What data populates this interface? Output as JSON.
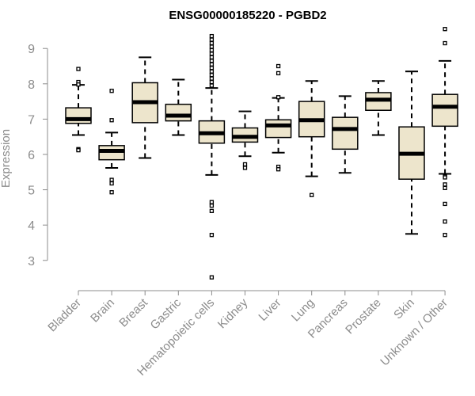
{
  "chart_data": {
    "type": "boxplot",
    "title": "ENSG00000185220 - PGBD2",
    "xlabel": "",
    "ylabel": "Expression",
    "ylim": [
      2.3,
      9.7
    ],
    "yticks": [
      3,
      4,
      5,
      6,
      7,
      8,
      9
    ],
    "box_fill": "#ede5cc",
    "box_stroke": "#000000",
    "axis_color": "#8c8c8c",
    "categories": [
      "Bladder",
      "Brain",
      "Breast",
      "Gastric",
      "Hematopoietic cells",
      "Kidney",
      "Liver",
      "Lung",
      "Pancreas",
      "Prostate",
      "Skin",
      "Unknown / Other"
    ],
    "series": [
      {
        "name": "Bladder",
        "min": 6.55,
        "q1": 6.88,
        "median": 7.0,
        "q3": 7.32,
        "max": 7.97,
        "outliers": [
          8.42,
          8.05,
          7.98,
          6.15,
          6.12
        ]
      },
      {
        "name": "Brain",
        "min": 5.62,
        "q1": 5.85,
        "median": 6.1,
        "q3": 6.25,
        "max": 6.62,
        "outliers": [
          7.8,
          6.97,
          5.28,
          5.18,
          4.93
        ]
      },
      {
        "name": "Breast",
        "min": 5.9,
        "q1": 6.9,
        "median": 7.48,
        "q3": 8.03,
        "max": 8.75,
        "outliers": []
      },
      {
        "name": "Gastric",
        "min": 6.55,
        "q1": 6.95,
        "median": 7.1,
        "q3": 7.42,
        "max": 8.12,
        "outliers": []
      },
      {
        "name": "Hematopoietic cells",
        "min": 5.42,
        "q1": 6.32,
        "median": 6.6,
        "q3": 6.95,
        "max": 7.88,
        "outliers": [
          9.35,
          9.25,
          9.15,
          9.05,
          8.95,
          8.85,
          8.75,
          8.65,
          8.55,
          8.45,
          8.35,
          8.25,
          8.15,
          8.05,
          7.95,
          4.65,
          4.55,
          4.4,
          3.72,
          2.52
        ]
      },
      {
        "name": "Kidney",
        "min": 5.95,
        "q1": 6.35,
        "median": 6.5,
        "q3": 6.75,
        "max": 7.22,
        "outliers": [
          5.72,
          5.62
        ]
      },
      {
        "name": "Liver",
        "min": 6.05,
        "q1": 6.48,
        "median": 6.82,
        "q3": 6.98,
        "max": 7.6,
        "outliers": [
          8.5,
          8.3,
          7.62,
          5.65,
          5.58
        ]
      },
      {
        "name": "Lung",
        "min": 5.38,
        "q1": 6.5,
        "median": 6.97,
        "q3": 7.5,
        "max": 8.08,
        "outliers": [
          4.85
        ]
      },
      {
        "name": "Pancreas",
        "min": 5.48,
        "q1": 6.15,
        "median": 6.72,
        "q3": 7.05,
        "max": 7.65,
        "outliers": []
      },
      {
        "name": "Prostate",
        "min": 6.55,
        "q1": 7.25,
        "median": 7.55,
        "q3": 7.75,
        "max": 8.08,
        "outliers": []
      },
      {
        "name": "Skin",
        "min": 3.75,
        "q1": 5.3,
        "median": 6.02,
        "q3": 6.78,
        "max": 8.35,
        "outliers": []
      },
      {
        "name": "Unknown / Other",
        "min": 5.45,
        "q1": 6.8,
        "median": 7.35,
        "q3": 7.7,
        "max": 8.65,
        "outliers": [
          9.55,
          9.15,
          5.38,
          5.35,
          5.15,
          5.05,
          4.6,
          4.1,
          3.72
        ]
      }
    ]
  }
}
